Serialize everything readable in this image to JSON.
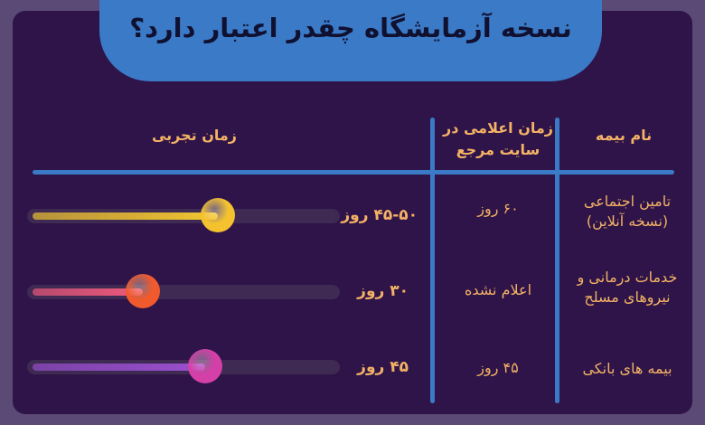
{
  "title": "نسخه آزمایشگاه چقدر اعتبار دارد؟",
  "headers": {
    "name": "نام بیمه",
    "announced": "زمان اعلامی در سایت مرجع",
    "actual": "زمان تجربی"
  },
  "rows": [
    {
      "name": "تامین اجتماعی (نسخه آنلاین)",
      "announced": "۶۰ روز",
      "actual": "۴۵-۵۰ روز",
      "level": 0.61,
      "fill_color": "#f2c630",
      "knob_color": "#f4c22e"
    },
    {
      "name": "خدمات درمانی و نیروهای مسلح",
      "announced": "اعلام نشده",
      "actual": "۳۰ روز",
      "level": 0.37,
      "fill_color": "#ef5a7c",
      "knob_color": "#f05a2c"
    },
    {
      "name": "بیمه های بانکی",
      "announced": "۴۵ روز",
      "actual": "۴۵ روز",
      "level": 0.57,
      "fill_color": "#9a4fd0",
      "knob_color": "#d43fa8"
    }
  ]
}
